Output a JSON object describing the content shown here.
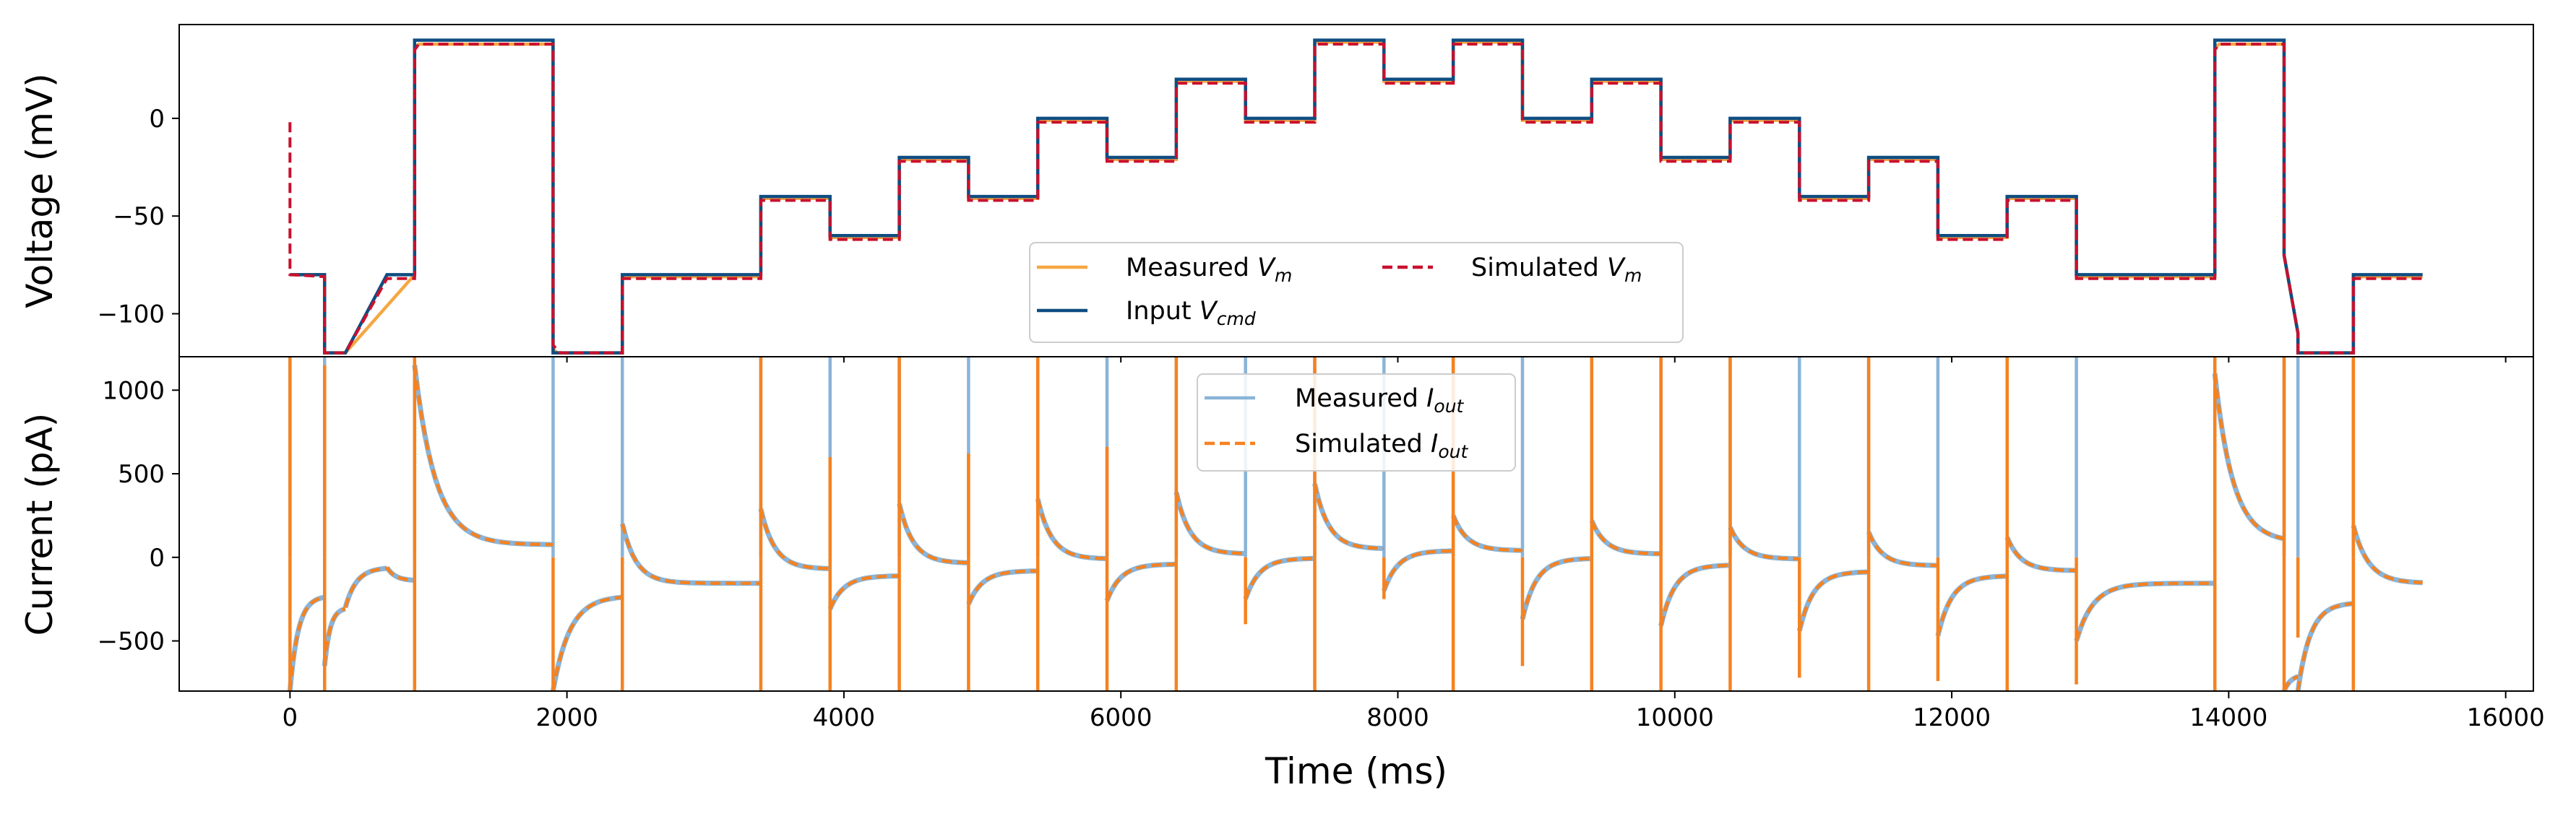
{
  "figure": {
    "xlabel": "Time (ms)",
    "top_ylabel": "Voltage (mV)",
    "bottom_ylabel": "Current (pA)"
  },
  "colors": {
    "measured_vm": "#f5a742",
    "input_vcmd": "#0f4d82",
    "simulated_vm": "#c9102e",
    "measured_iout": "#8ab4d8",
    "simulated_iout": "#f58220"
  },
  "chart_data": [
    {
      "type": "line",
      "panel": "top",
      "xlabel": "",
      "ylabel": "Voltage (mV)",
      "xlim": [
        -800,
        16200
      ],
      "ylim": [
        -122,
        48
      ],
      "x_ticks": [
        0,
        2000,
        4000,
        6000,
        8000,
        10000,
        12000,
        14000,
        16000
      ],
      "y_ticks": [
        0,
        -50,
        -100
      ],
      "y_tick_labels": [
        "0",
        "−50",
        "−100"
      ],
      "grid": false,
      "legend_position": "lower-center",
      "legend_columns": 2,
      "series": [
        {
          "name": "Measured V_m",
          "name_main": "Measured ",
          "name_math": "V",
          "name_sub": "m",
          "style": "solid",
          "x": [
            0,
            250,
            250,
            400,
            900,
            900,
            930,
            1900,
            1900,
            1930,
            2400,
            2400,
            3400,
            3400,
            3900,
            3900,
            4400,
            4400,
            4900,
            4900,
            5400,
            5400,
            5900,
            5900,
            6400,
            6400,
            6900,
            6900,
            7400,
            7400,
            7900,
            7900,
            8400,
            8400,
            8900,
            8900,
            9400,
            9400,
            9900,
            9900,
            10400,
            10400,
            10900,
            10900,
            11400,
            11400,
            11900,
            11900,
            12400,
            12400,
            12900,
            12900,
            13900,
            13900,
            13930,
            14400,
            14400,
            14500,
            14500,
            14900,
            14900,
            15400
          ],
          "y": [
            -80,
            -80,
            -120,
            -120,
            -80,
            36,
            38,
            38,
            -118,
            -120,
            -120,
            -81,
            -81,
            -41,
            -41,
            -61,
            -61,
            -21,
            -21,
            -41,
            -41,
            -1,
            -1,
            -21,
            -21,
            19,
            19,
            -1,
            -1,
            39,
            39,
            19,
            19,
            39,
            39,
            -1,
            -1,
            19,
            19,
            -21,
            -21,
            -1,
            -1,
            -41,
            -41,
            -21,
            -21,
            -61,
            -61,
            -41,
            -41,
            -81,
            -81,
            36,
            38,
            38,
            -70,
            -110,
            -120,
            -120,
            -81,
            -81
          ]
        },
        {
          "name": "Input V_cmd",
          "name_main": "Input ",
          "name_math": "V",
          "name_sub": "cmd",
          "style": "solid",
          "x": [
            0,
            250,
            250,
            400,
            700,
            900,
            900,
            1900,
            1900,
            2400,
            2400,
            3400,
            3400,
            3900,
            3900,
            4400,
            4400,
            4900,
            4900,
            5400,
            5400,
            5900,
            5900,
            6400,
            6400,
            6900,
            6900,
            7400,
            7400,
            7900,
            7900,
            8400,
            8400,
            8900,
            8900,
            9400,
            9400,
            9900,
            9900,
            10400,
            10400,
            10900,
            10900,
            11400,
            11400,
            11900,
            11900,
            12400,
            12400,
            12900,
            12900,
            13900,
            13900,
            14400,
            14400,
            14500,
            14500,
            14900,
            14900,
            15400
          ],
          "y": [
            -80,
            -80,
            -120,
            -120,
            -80,
            -80,
            40,
            40,
            -120,
            -120,
            -80,
            -80,
            -40,
            -40,
            -60,
            -60,
            -20,
            -20,
            -40,
            -40,
            0,
            0,
            -20,
            -20,
            20,
            20,
            0,
            0,
            40,
            40,
            20,
            20,
            40,
            40,
            0,
            0,
            20,
            20,
            -20,
            -20,
            0,
            0,
            -40,
            -40,
            -20,
            -20,
            -60,
            -60,
            -40,
            -40,
            -80,
            -80,
            40,
            40,
            -70,
            -110,
            -120,
            -120,
            -80,
            -80
          ]
        },
        {
          "name": "Simulated V_m",
          "name_main": "Simulated ",
          "name_math": "V",
          "name_sub": "m",
          "style": "dashed",
          "x": [
            0,
            0,
            250,
            250,
            400,
            700,
            900,
            900,
            930,
            1900,
            1900,
            1950,
            2400,
            2400,
            3400,
            3400,
            3900,
            3900,
            4400,
            4400,
            4900,
            4900,
            5400,
            5400,
            5900,
            5900,
            6400,
            6400,
            6900,
            6900,
            7400,
            7400,
            7900,
            7900,
            8400,
            8400,
            8900,
            8900,
            9400,
            9400,
            9900,
            9900,
            10400,
            10400,
            10900,
            10900,
            11400,
            11400,
            11900,
            11900,
            12400,
            12400,
            12900,
            12900,
            13900,
            13900,
            13930,
            14400,
            14400,
            14500,
            14500,
            14900,
            14900,
            15400
          ],
          "y": [
            -2,
            -80,
            -81,
            -120,
            -120,
            -82,
            -82,
            35,
            38,
            38,
            -116,
            -120,
            -120,
            -82,
            -82,
            -42,
            -42,
            -62,
            -62,
            -22,
            -22,
            -42,
            -42,
            -2,
            -2,
            -22,
            -22,
            18,
            18,
            -2,
            -2,
            38,
            38,
            18,
            18,
            38,
            38,
            -2,
            -2,
            18,
            18,
            -22,
            -22,
            -2,
            -2,
            -42,
            -42,
            -22,
            -22,
            -62,
            -62,
            -42,
            -42,
            -82,
            -82,
            35,
            38,
            38,
            -70,
            -110,
            -120,
            -120,
            -82,
            -82
          ]
        }
      ]
    },
    {
      "type": "line",
      "panel": "bottom",
      "xlabel": "Time (ms)",
      "ylabel": "Current (pA)",
      "xlim": [
        -800,
        16200
      ],
      "ylim": [
        -800,
        1200
      ],
      "x_ticks": [
        0,
        2000,
        4000,
        6000,
        8000,
        10000,
        12000,
        14000,
        16000
      ],
      "y_ticks": [
        1000,
        500,
        0,
        -500
      ],
      "y_tick_labels": [
        "1000",
        "500",
        "0",
        "−500"
      ],
      "grid": false,
      "legend_position": "top-center",
      "legend_columns": 1,
      "step_times": [
        0,
        250,
        900,
        1900,
        2400,
        3400,
        3900,
        4400,
        4900,
        5400,
        5900,
        6400,
        6900,
        7400,
        7900,
        8400,
        8900,
        9400,
        9900,
        10400,
        10900,
        11400,
        11900,
        12400,
        12900,
        13900,
        14400,
        14500,
        14900
      ],
      "relaxation_segments": [
        {
          "t0": 0,
          "t1": 250,
          "start": -800,
          "end": -230,
          "tau": 60
        },
        {
          "t0": 250,
          "t1": 400,
          "start": -650,
          "end": -300,
          "tau": 40
        },
        {
          "t0": 400,
          "t1": 700,
          "start": -300,
          "end": -60,
          "tau": 80
        },
        {
          "t0": 700,
          "t1": 900,
          "start": -60,
          "end": -140,
          "tau": 60
        },
        {
          "t0": 900,
          "t1": 1900,
          "start": 1150,
          "end": 75,
          "tau": 150
        },
        {
          "t0": 1900,
          "t1": 2400,
          "start": -800,
          "end": -230,
          "tau": 120
        },
        {
          "t0": 2400,
          "t1": 3400,
          "start": 200,
          "end": -155,
          "tau": 100
        },
        {
          "t0": 3400,
          "t1": 3900,
          "start": 290,
          "end": -70,
          "tau": 100
        },
        {
          "t0": 3900,
          "t1": 4400,
          "start": -310,
          "end": -110,
          "tau": 100
        },
        {
          "t0": 4400,
          "t1": 4900,
          "start": 320,
          "end": -35,
          "tau": 100
        },
        {
          "t0": 4900,
          "t1": 5400,
          "start": -280,
          "end": -80,
          "tau": 100
        },
        {
          "t0": 5400,
          "t1": 5900,
          "start": 350,
          "end": -10,
          "tau": 100
        },
        {
          "t0": 5900,
          "t1": 6400,
          "start": -260,
          "end": -40,
          "tau": 100
        },
        {
          "t0": 6400,
          "t1": 6900,
          "start": 390,
          "end": 20,
          "tau": 100
        },
        {
          "t0": 6900,
          "t1": 7400,
          "start": -250,
          "end": -5,
          "tau": 100
        },
        {
          "t0": 7400,
          "t1": 7900,
          "start": 440,
          "end": 50,
          "tau": 100
        },
        {
          "t0": 7900,
          "t1": 8400,
          "start": -200,
          "end": 40,
          "tau": 100
        },
        {
          "t0": 8400,
          "t1": 8900,
          "start": 250,
          "end": 40,
          "tau": 100
        },
        {
          "t0": 8900,
          "t1": 9400,
          "start": -370,
          "end": -5,
          "tau": 100
        },
        {
          "t0": 9400,
          "t1": 9900,
          "start": 220,
          "end": 20,
          "tau": 100
        },
        {
          "t0": 9900,
          "t1": 10400,
          "start": -410,
          "end": -45,
          "tau": 100
        },
        {
          "t0": 10400,
          "t1": 10900,
          "start": 180,
          "end": -10,
          "tau": 100
        },
        {
          "t0": 10900,
          "t1": 11400,
          "start": -440,
          "end": -85,
          "tau": 100
        },
        {
          "t0": 11400,
          "t1": 11900,
          "start": 150,
          "end": -50,
          "tau": 100
        },
        {
          "t0": 11900,
          "t1": 12400,
          "start": -470,
          "end": -110,
          "tau": 100
        },
        {
          "t0": 12400,
          "t1": 12900,
          "start": 120,
          "end": -80,
          "tau": 100
        },
        {
          "t0": 12900,
          "t1": 13900,
          "start": -500,
          "end": -155,
          "tau": 120
        },
        {
          "t0": 13900,
          "t1": 14400,
          "start": 1100,
          "end": 90,
          "tau": 130
        },
        {
          "t0": 14400,
          "t1": 14500,
          "start": -800,
          "end": -700,
          "tau": 50
        },
        {
          "t0": 14500,
          "t1": 14900,
          "start": -800,
          "end": -270,
          "tau": 90
        },
        {
          "t0": 14900,
          "t1": 15400,
          "start": 190,
          "end": -155,
          "tau": 110
        }
      ],
      "series": [
        {
          "name": "Measured I_out",
          "name_main": "Measured ",
          "name_math": "I",
          "name_sub": "out",
          "style": "solid",
          "spike_peaks": [
            1200,
            1200,
            1200,
            1200,
            1200,
            1200,
            1200,
            1200,
            1200,
            1200,
            1200,
            1200,
            1200,
            1200,
            1200,
            1200,
            1200,
            1200,
            1200,
            1200,
            1200,
            1200,
            1200,
            1200,
            1200,
            1200,
            1200,
            1200,
            1200
          ]
        },
        {
          "name": "Simulated I_out",
          "name_main": "Simulated ",
          "name_math": "I",
          "name_sub": "out",
          "style": "dashed",
          "spike_peaks": [
            1200,
            1150,
            1200,
            -800,
            -800,
            1200,
            600,
            1200,
            620,
            1200,
            660,
            1200,
            -400,
            1200,
            -250,
            1200,
            -650,
            1200,
            1200,
            1200,
            -720,
            1200,
            -740,
            1200,
            -760,
            1200,
            1200,
            -480,
            1200
          ]
        }
      ]
    }
  ]
}
